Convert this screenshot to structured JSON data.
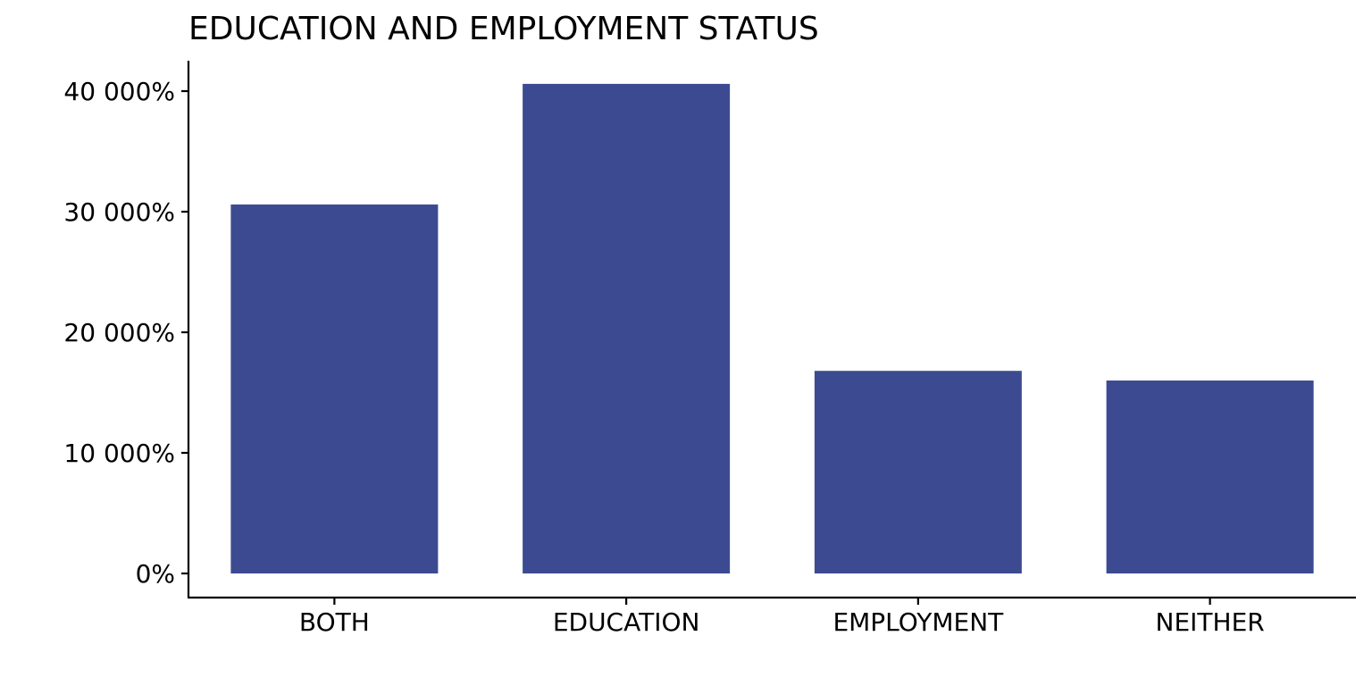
{
  "chart_data": {
    "type": "bar",
    "title": "EDUCATION AND EMPLOYMENT STATUS",
    "xlabel": "",
    "ylabel": "",
    "categories": [
      "BOTH",
      "EDUCATION",
      "EMPLOYMENT",
      "NEITHER"
    ],
    "values": [
      30600,
      40600,
      16800,
      16000
    ],
    "ylim": [
      0,
      42500
    ],
    "yticks": [
      0,
      10000,
      20000,
      30000,
      40000
    ],
    "ytick_labels": [
      "0%",
      "10 000%",
      "20 000%",
      "30 000%",
      "40 000%"
    ],
    "grid": false,
    "legend": "none",
    "bar_color": "#3C4B91",
    "axis_color": "#000000",
    "background_color": "#FFFFFF"
  }
}
